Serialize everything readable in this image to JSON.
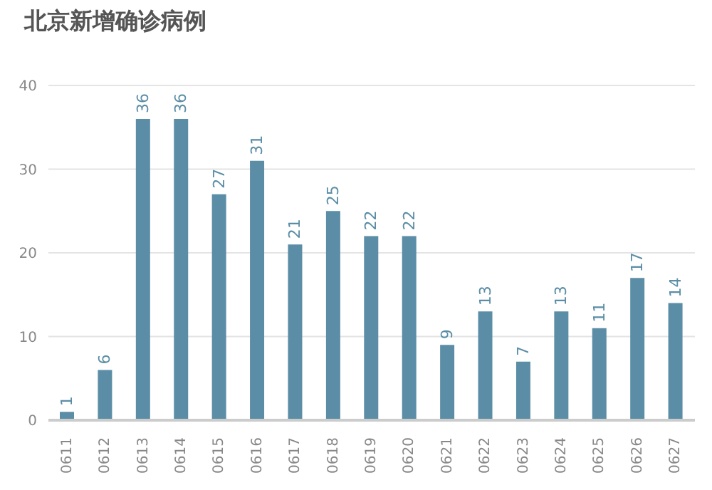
{
  "chart_data": {
    "type": "bar",
    "title": "北京新增确诊病例",
    "categories": [
      "0611",
      "0612",
      "0613",
      "0614",
      "0615",
      "0616",
      "0617",
      "0618",
      "0619",
      "0620",
      "0621",
      "0622",
      "0623",
      "0624",
      "0625",
      "0626",
      "0627"
    ],
    "values": [
      1,
      6,
      36,
      36,
      27,
      31,
      21,
      25,
      22,
      22,
      9,
      13,
      7,
      13,
      11,
      17,
      14
    ],
    "color": "#5b8ea6",
    "ylim": [
      0,
      40
    ],
    "yticks": [
      0,
      10,
      20,
      30,
      40
    ],
    "grid": "y",
    "data_labels": true
  }
}
